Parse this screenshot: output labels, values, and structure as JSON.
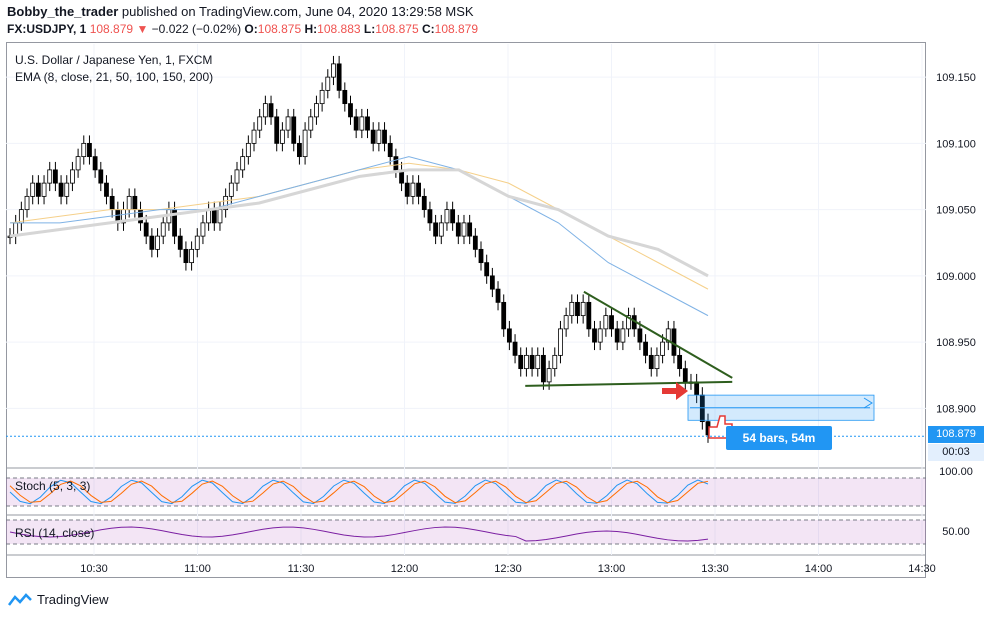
{
  "header": {
    "author": "Bobby_the_trader",
    "published": "published on TradingView.com, June 04, 2020 13:29:58 MSK",
    "symbol": "FX:USDJPY, 1",
    "last": "108.879",
    "change": "−0.022 (−0.02%)",
    "o_label": "O:",
    "o": "108.875",
    "h_label": "H:",
    "h": "108.883",
    "l_label": "L:",
    "l": "108.875",
    "c_label": "C:",
    "c": "108.879"
  },
  "pane": {
    "title": "U.S. Dollar / Japanese Yen, 1, FXCM",
    "ema_label": "EMA (8, close, 21, 50, 100, 150, 200)",
    "stoch_label": "Stoch (5, 3, 3)",
    "rsi_label": "RSI (14, close)",
    "price_badge": "108.879",
    "countdown": "00:03",
    "stoch_axis": "100.00",
    "rsi_axis": "50.00"
  },
  "measure": {
    "label": "54 bars, 54m"
  },
  "footer": {
    "brand": "TradingView"
  },
  "colors": {
    "up": "#ffffff",
    "down": "#000000",
    "accent": "#2196f3",
    "trend": "#2e5e1e",
    "ema_fast": "#f5d08a",
    "ema_mid": "#7fb2e5",
    "ema_slow": "#d6d6d6",
    "stoch_k": "#2196f3",
    "stoch_d": "#ff6d00",
    "rsi": "#7b1fa2",
    "arrow": "#e53935"
  },
  "chart_data": {
    "type": "candlestick",
    "yticks": [
      "109.150",
      "109.100",
      "109.050",
      "109.000",
      "108.950",
      "108.900"
    ],
    "ylim": [
      108.855,
      109.175
    ],
    "xticks": [
      "10:30",
      "11:00",
      "11:30",
      "12:00",
      "12:30",
      "13:00",
      "13:30",
      "14:00",
      "14:30"
    ],
    "series_close": [
      109.03,
      109.04,
      109.05,
      109.06,
      109.07,
      109.06,
      109.07,
      109.08,
      109.07,
      109.06,
      109.07,
      109.08,
      109.09,
      109.1,
      109.09,
      109.08,
      109.07,
      109.06,
      109.05,
      109.04,
      109.05,
      109.06,
      109.05,
      109.04,
      109.03,
      109.02,
      109.03,
      109.04,
      109.05,
      109.03,
      109.02,
      109.01,
      109.02,
      109.03,
      109.04,
      109.05,
      109.04,
      109.05,
      109.06,
      109.07,
      109.08,
      109.09,
      109.1,
      109.11,
      109.12,
      109.13,
      109.12,
      109.1,
      109.11,
      109.12,
      109.1,
      109.09,
      109.11,
      109.12,
      109.13,
      109.14,
      109.15,
      109.16,
      109.14,
      109.13,
      109.12,
      109.11,
      109.12,
      109.11,
      109.1,
      109.11,
      109.1,
      109.09,
      109.08,
      109.07,
      109.06,
      109.07,
      109.06,
      109.05,
      109.04,
      109.03,
      109.04,
      109.05,
      109.04,
      109.03,
      109.04,
      109.03,
      109.02,
      109.01,
      109.0,
      108.99,
      108.98,
      108.96,
      108.95,
      108.94,
      108.93,
      108.94,
      108.93,
      108.94,
      108.92,
      108.93,
      108.94,
      108.96,
      108.97,
      108.98,
      108.97,
      108.98,
      108.96,
      108.95,
      108.96,
      108.97,
      108.96,
      108.95,
      108.96,
      108.97,
      108.96,
      108.95,
      108.94,
      108.93,
      108.94,
      108.95,
      108.96,
      108.94,
      108.93,
      108.92,
      108.92,
      108.91,
      108.89,
      108.88
    ],
    "ema": [
      {
        "values": [
          109.04,
          109.045,
          109.05,
          109.05,
          109.055,
          109.06,
          109.07,
          109.08,
          109.085,
          109.08,
          109.07,
          109.05,
          109.03,
          109.01,
          108.99
        ]
      },
      {
        "values": [
          109.04,
          109.04,
          109.045,
          109.05,
          109.05,
          109.06,
          109.07,
          109.08,
          109.09,
          109.08,
          109.06,
          109.04,
          109.01,
          108.99,
          108.97
        ]
      },
      {
        "values": [
          109.03,
          109.035,
          109.04,
          109.045,
          109.05,
          109.055,
          109.065,
          109.075,
          109.08,
          109.08,
          109.06,
          109.05,
          109.03,
          109.02,
          109.0
        ]
      }
    ],
    "trendlines": [
      {
        "from": [
          "12:35",
          108.917
        ],
        "to": [
          "13:35",
          108.92
        ]
      },
      {
        "from": [
          "12:52",
          108.988
        ],
        "to": [
          "13:35",
          108.923
        ]
      }
    ],
    "measure_range": {
      "from": 108.91,
      "to": 108.891,
      "label": "54 bars, 54m"
    },
    "current_price": 108.879
  }
}
